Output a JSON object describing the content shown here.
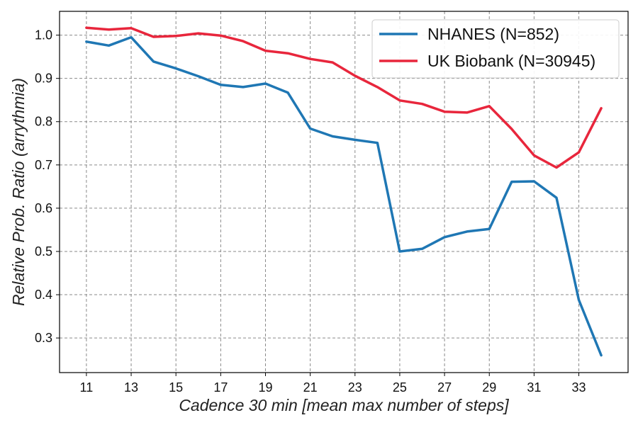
{
  "chart_data": {
    "type": "line",
    "xlabel": "Cadence 30 min [mean max number of steps]",
    "ylabel": "Relative Prob. Ratio (arrythmia)",
    "xlim": [
      9.8,
      35.2
    ],
    "ylim": [
      0.22,
      1.055
    ],
    "x_ticks": [
      11,
      13,
      15,
      17,
      19,
      21,
      23,
      25,
      27,
      29,
      31,
      33
    ],
    "y_ticks": [
      0.3,
      0.4,
      0.5,
      0.6,
      0.7,
      0.8,
      0.9,
      1.0
    ],
    "y_tick_labels": [
      "0.3",
      "0.4",
      "0.5",
      "0.6",
      "0.7",
      "0.8",
      "0.9",
      "1.0"
    ],
    "grid": true,
    "legend_position": "top-right",
    "x": [
      11,
      12,
      13,
      14,
      15,
      16,
      17,
      18,
      19,
      20,
      21,
      22,
      23,
      24,
      25,
      26,
      27,
      28,
      29,
      30,
      31,
      32,
      33,
      34
    ],
    "series": [
      {
        "name": "NHANES (N=852)",
        "color": "#1f77b4",
        "values": [
          0.985,
          0.976,
          0.995,
          0.939,
          0.923,
          0.905,
          0.885,
          0.88,
          0.888,
          0.867,
          0.784,
          0.766,
          0.758,
          0.751,
          0.5,
          0.506,
          0.533,
          0.546,
          0.552,
          0.661,
          0.662,
          0.624,
          0.388,
          0.26
        ]
      },
      {
        "name": "UK Biobank (N=30945)",
        "color": "#e8263c",
        "values": [
          1.017,
          1.013,
          1.016,
          0.996,
          0.998,
          1.004,
          0.999,
          0.986,
          0.964,
          0.958,
          0.945,
          0.937,
          0.906,
          0.88,
          0.849,
          0.841,
          0.823,
          0.821,
          0.836,
          0.783,
          0.722,
          0.694,
          0.729,
          0.831
        ]
      }
    ]
  }
}
